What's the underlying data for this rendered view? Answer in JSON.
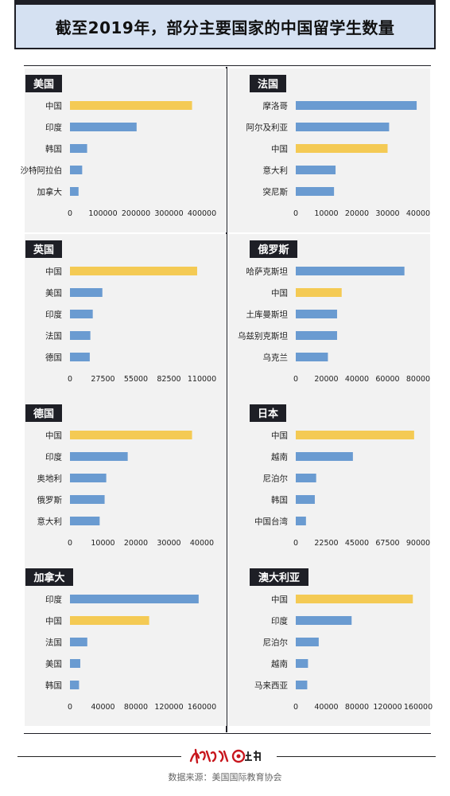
{
  "title": "截至2019年，部分主要国家的中国留学生数量",
  "source": "数据来源：美国国际教育协会",
  "colors": {
    "china": "#f4ca54",
    "other": "#6a9bd1",
    "chip": "#1e1f26",
    "panel_bg": "#f2f2f2"
  },
  "chart_data": [
    {
      "type": "bar",
      "country": "美国",
      "categories": [
        "中国",
        "印度",
        "韩国",
        "沙特阿拉伯",
        "加拿大"
      ],
      "values": [
        370000,
        202000,
        52000,
        37000,
        26000
      ],
      "ticks": [
        "0",
        "100000",
        "200000",
        "300000",
        "400000"
      ],
      "xlim": [
        0,
        400000
      ],
      "highlight": "中国"
    },
    {
      "type": "bar",
      "country": "法国",
      "categories": [
        "摩洛哥",
        "阿尔及利亚",
        "中国",
        "意大利",
        "突尼斯"
      ],
      "values": [
        39500,
        30500,
        30000,
        13000,
        12500
      ],
      "ticks": [
        "0",
        "10000",
        "20000",
        "30000",
        "40000"
      ],
      "xlim": [
        0,
        40000
      ],
      "highlight": "中国"
    },
    {
      "type": "bar",
      "country": "英国",
      "categories": [
        "中国",
        "美国",
        "印度",
        "法国",
        "德国"
      ],
      "values": [
        106000,
        27000,
        19000,
        17000,
        16500
      ],
      "ticks": [
        "0",
        "27500",
        "55000",
        "82500",
        "110000"
      ],
      "xlim": [
        0,
        110000
      ],
      "highlight": "中国"
    },
    {
      "type": "bar",
      "country": "俄罗斯",
      "categories": [
        "哈萨克斯坦",
        "中国",
        "土库曼斯坦",
        "乌兹别克斯坦",
        "乌克兰"
      ],
      "values": [
        71000,
        30000,
        27000,
        27000,
        21000
      ],
      "ticks": [
        "0",
        "20000",
        "40000",
        "60000",
        "80000"
      ],
      "xlim": [
        0,
        80000
      ],
      "highlight": "中国"
    },
    {
      "type": "bar",
      "country": "德国",
      "categories": [
        "中国",
        "印度",
        "奥地利",
        "俄罗斯",
        "意大利"
      ],
      "values": [
        37000,
        17500,
        11000,
        10500,
        9000
      ],
      "ticks": [
        "0",
        "10000",
        "20000",
        "30000",
        "40000"
      ],
      "xlim": [
        0,
        40000
      ],
      "highlight": "中国"
    },
    {
      "type": "bar",
      "country": "日本",
      "categories": [
        "中国",
        "越南",
        "尼泊尔",
        "韩国",
        "中国台湾"
      ],
      "values": [
        87000,
        42000,
        15000,
        14000,
        7500
      ],
      "ticks": [
        "0",
        "22500",
        "45000",
        "67500",
        "90000"
      ],
      "xlim": [
        0,
        90000
      ],
      "highlight": "中国"
    },
    {
      "type": "bar",
      "country": "加拿大",
      "categories": [
        "印度",
        "中国",
        "法国",
        "美国",
        "韩国"
      ],
      "values": [
        156000,
        96000,
        21000,
        12500,
        11000
      ],
      "ticks": [
        "0",
        "40000",
        "80000",
        "120000",
        "160000"
      ],
      "xlim": [
        0,
        160000
      ],
      "highlight": "中国"
    },
    {
      "type": "bar",
      "country": "澳大利亚",
      "categories": [
        "中国",
        "印度",
        "尼泊尔",
        "越南",
        "马来西亚"
      ],
      "values": [
        153000,
        73000,
        30000,
        16000,
        15000
      ],
      "ticks": [
        "0",
        "40000",
        "80000",
        "120000",
        "160000"
      ],
      "xlim": [
        0,
        160000
      ],
      "highlight": "中国"
    }
  ]
}
